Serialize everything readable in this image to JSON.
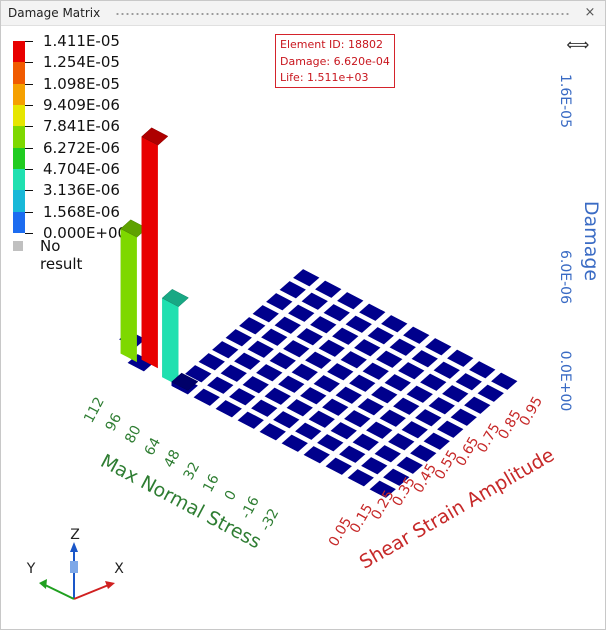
{
  "window": {
    "title": "Damage Matrix",
    "close_glyph": "×"
  },
  "legend": {
    "labels": [
      "1.411E-05",
      "1.254E-05",
      "1.098E-05",
      "9.409E-06",
      "7.841E-06",
      "6.272E-06",
      "4.704E-06",
      "3.136E-06",
      "1.568E-06",
      "0.000E+00"
    ],
    "colors": [
      "#e80000",
      "#f05a00",
      "#f5a000",
      "#e6e600",
      "#7ed800",
      "#20cc20",
      "#20e0b0",
      "#18b8d8",
      "#1c6cf0",
      "#0000cc"
    ],
    "no_result_label": "No result",
    "no_result_color": "#c0c0c0"
  },
  "tooltip": {
    "line1": "Element ID: 18802",
    "line2": "Damage: 6.620e-04",
    "line3": "Life: 1.511e+03"
  },
  "scroll_icon": "left-right-arrow-icon",
  "axes": {
    "damage_label": "Damage",
    "damage_ticks": [
      "1.6E-05",
      "6.0E-06",
      "0.0E+00"
    ],
    "normal_stress_label": "Max Normal Stress",
    "normal_stress_ticks": [
      "112",
      "96",
      "80",
      "64",
      "48",
      "32",
      "16",
      "0",
      "-16",
      "-32"
    ],
    "shear_label": "Shear Strain Amplitude",
    "shear_ticks": [
      "0.05",
      "0.15",
      "0.25",
      "0.35",
      "0.45",
      "0.55",
      "0.65",
      "0.75",
      "0.85",
      "0.95"
    ],
    "triad": {
      "x": "X",
      "y": "Y",
      "z": "Z"
    }
  },
  "colors": {
    "floor_cell": "#00008c",
    "stress_axis": "#2e7d32",
    "shear_axis": "#c62828",
    "damage_axis": "#3a6bc4"
  },
  "chart_data": {
    "type": "bar3d",
    "title": "Damage Matrix",
    "xlabel": "Shear Strain Amplitude",
    "ylabel": "Max Normal Stress",
    "zlabel": "Damage",
    "shear_categories": [
      "0.05",
      "0.15",
      "0.25",
      "0.35",
      "0.45",
      "0.55",
      "0.65",
      "0.75",
      "0.85",
      "0.95"
    ],
    "stress_categories": [
      "112",
      "96",
      "80",
      "64",
      "48",
      "32",
      "16",
      "0",
      "-16",
      "-32"
    ],
    "bars": [
      {
        "stress": "96",
        "shear": "0.05",
        "value": 7.9e-06
      },
      {
        "stress": "80",
        "shear": "0.05",
        "value": 1.411e-05
      },
      {
        "stress": "64",
        "shear": "0.05",
        "value": 5e-06
      },
      {
        "stress": "48",
        "shear": "0.05",
        "value": 0.0
      }
    ],
    "zlim": [
      0,
      1.6e-05
    ]
  }
}
